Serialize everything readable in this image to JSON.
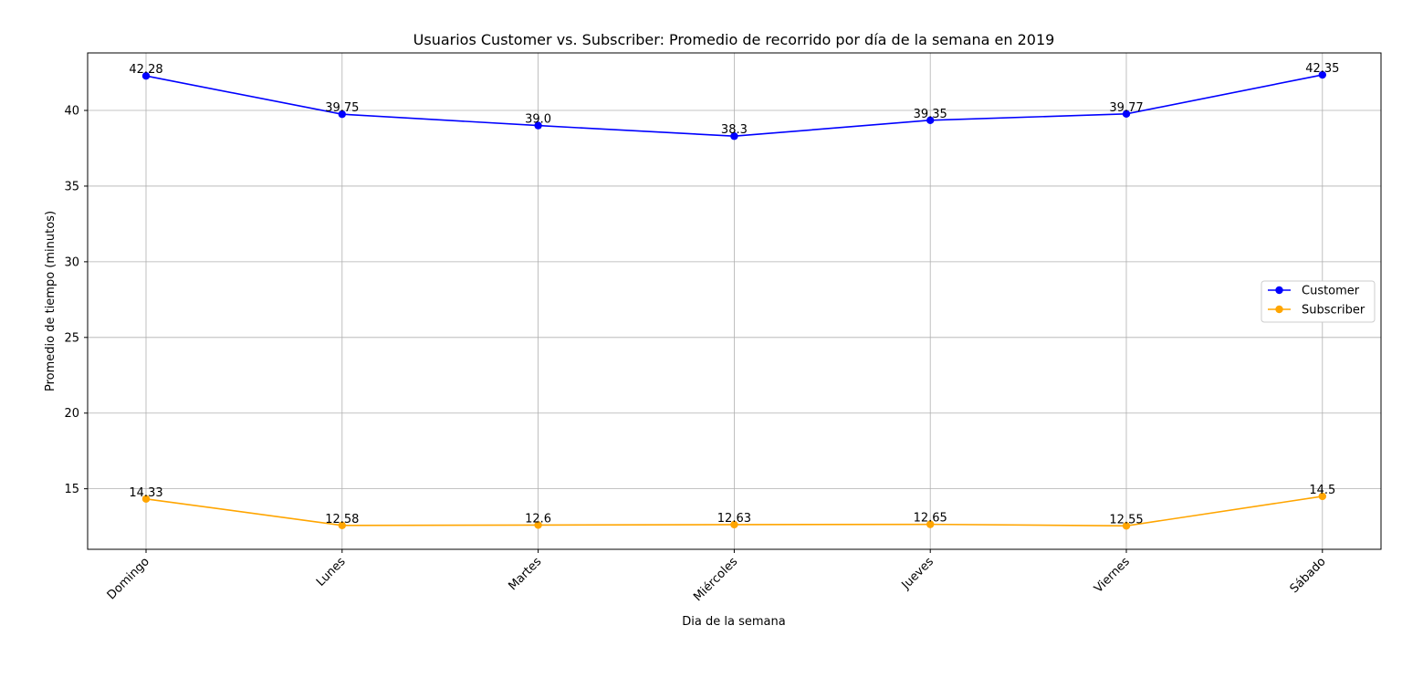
{
  "chart_data": {
    "type": "line",
    "title": "Usuarios Customer vs. Subscriber: Promedio de recorrido por día de la semana en 2019",
    "xlabel": "Dia de la semana",
    "ylabel": "Promedio de tiempo (minutos)",
    "categories": [
      "Domingo",
      "Lunes",
      "Martes",
      "Miércoles",
      "Jueves",
      "Viernes",
      "Sábado"
    ],
    "yticks": [
      15,
      20,
      25,
      30,
      35,
      40
    ],
    "ylim": [
      11.0,
      43.8
    ],
    "grid": true,
    "legend_position": "center-right",
    "series": [
      {
        "name": "Customer",
        "color": "#0000ff",
        "values": [
          42.28,
          39.75,
          39.0,
          38.3,
          39.35,
          39.77,
          42.35
        ],
        "labels": [
          "42.28",
          "39.75",
          "39.0",
          "38.3",
          "39.35",
          "39.77",
          "42.35"
        ]
      },
      {
        "name": "Subscriber",
        "color": "#ffa500",
        "values": [
          14.33,
          12.58,
          12.6,
          12.63,
          12.65,
          12.55,
          14.5
        ],
        "labels": [
          "14.33",
          "12.58",
          "12.6",
          "12.63",
          "12.65",
          "12.55",
          "14.5"
        ]
      }
    ]
  }
}
